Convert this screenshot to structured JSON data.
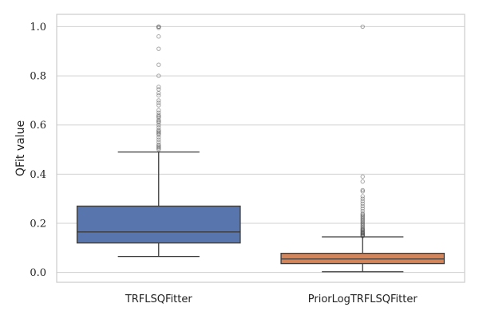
{
  "chart_data": {
    "type": "box",
    "title": "",
    "xlabel": "",
    "ylabel": "QFit value",
    "ylim": [
      -0.04,
      1.05
    ],
    "yticks": [
      "0.0",
      "0.2",
      "0.4",
      "0.6",
      "0.8",
      "1.0"
    ],
    "grid": "horizontal",
    "categories": [
      "TRFLSQFitter",
      "PriorLogTRFLSQFitter"
    ],
    "series": [
      {
        "category": "TRFLSQFitter",
        "color": "#5875ad",
        "whisker_low": 0.065,
        "q1": 0.12,
        "median": 0.165,
        "q3": 0.27,
        "whisker_high": 0.49,
        "outliers": [
          0.5,
          0.505,
          0.51,
          0.515,
          0.52,
          0.53,
          0.54,
          0.55,
          0.56,
          0.565,
          0.57,
          0.575,
          0.58,
          0.59,
          0.6,
          0.61,
          0.615,
          0.62,
          0.63,
          0.635,
          0.64,
          0.65,
          0.66,
          0.68,
          0.69,
          0.7,
          0.72,
          0.73,
          0.745,
          0.755,
          0.8,
          0.845,
          0.91,
          0.96,
          0.995,
          1.0,
          1.0
        ]
      },
      {
        "category": "PriorLogTRFLSQFitter",
        "color": "#d5855a",
        "whisker_low": 0.003,
        "q1": 0.036,
        "median": 0.055,
        "q3": 0.078,
        "whisker_high": 0.145,
        "outliers": [
          0.148,
          0.15,
          0.152,
          0.155,
          0.158,
          0.16,
          0.163,
          0.166,
          0.17,
          0.173,
          0.176,
          0.18,
          0.185,
          0.19,
          0.195,
          0.2,
          0.205,
          0.21,
          0.215,
          0.22,
          0.225,
          0.23,
          0.235,
          0.24,
          0.25,
          0.26,
          0.27,
          0.28,
          0.29,
          0.3,
          0.31,
          0.33,
          0.335,
          0.37,
          0.39,
          1.0
        ]
      }
    ]
  }
}
